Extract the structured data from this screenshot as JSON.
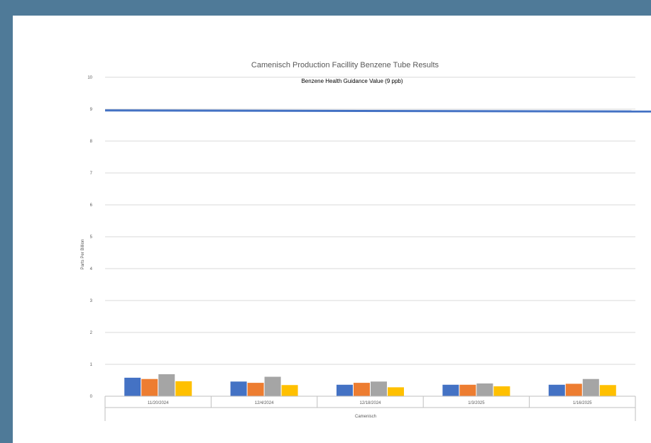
{
  "chart_data": {
    "type": "bar",
    "title": "Camenisch Production Facillity Benzene Tube Results",
    "annotation": "Benzene Health Guidance Value (9 ppb)",
    "ylabel": "Parts Per Billion",
    "xlabel": "Camenisch",
    "ylim": [
      0,
      10
    ],
    "yticks": [
      0,
      1,
      2,
      3,
      4,
      5,
      6,
      7,
      8,
      9,
      10
    ],
    "categories": [
      "11/20/2024",
      "12/4/2024",
      "12/18/2024",
      "1/3/2025",
      "1/16/2025"
    ],
    "series": [
      {
        "color": "#4472c4",
        "values": [
          0.58,
          0.46,
          0.36,
          0.36,
          0.36
        ]
      },
      {
        "color": "#ed7d31",
        "values": [
          0.54,
          0.42,
          0.42,
          0.36,
          0.39
        ]
      },
      {
        "color": "#a5a5a5",
        "values": [
          0.69,
          0.61,
          0.46,
          0.4,
          0.54
        ]
      },
      {
        "color": "#ffc000",
        "values": [
          0.47,
          0.35,
          0.28,
          0.31,
          0.35
        ]
      }
    ],
    "reference_line": {
      "value": 8.95,
      "color": "#4472c4"
    },
    "grid": true,
    "legend": "none"
  }
}
